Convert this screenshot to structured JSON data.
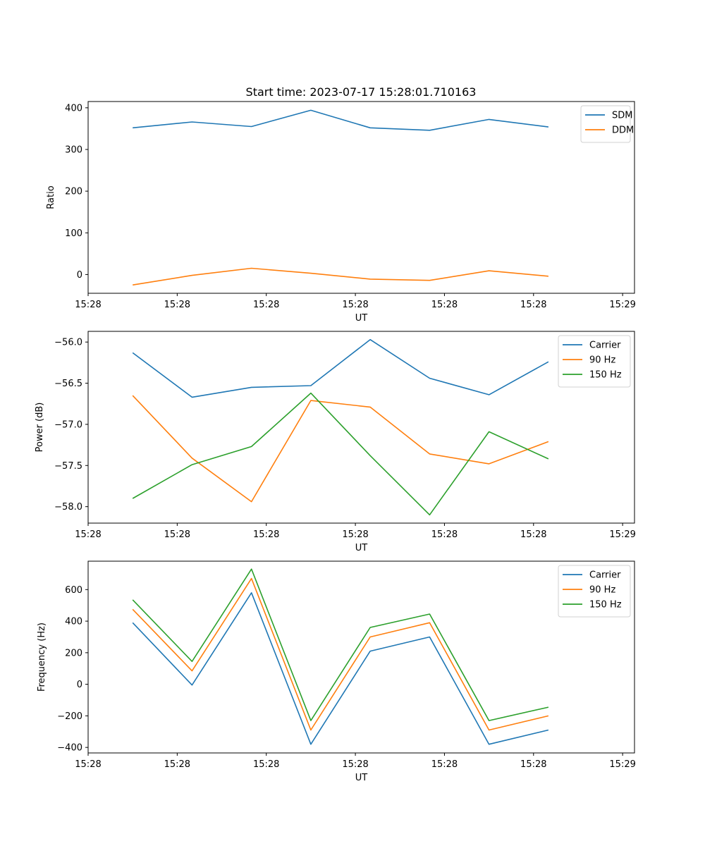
{
  "title": "Start time: 2023-07-17 15:28:01.710163",
  "colors": {
    "blue": "#1f77b4",
    "orange": "#ff7f0e",
    "green": "#2ca02c"
  },
  "chart_data": [
    {
      "type": "line",
      "xlabel": "UT",
      "ylabel": "Ratio",
      "x": [
        0,
        1,
        2,
        3,
        4,
        5,
        6,
        7
      ],
      "xlim": [
        -0.75,
        8.45
      ],
      "xticks": [
        -0.75,
        0.75,
        2.25,
        3.75,
        5.25,
        6.75,
        8.25
      ],
      "xtick_labels": [
        "15:28",
        "15:28",
        "15:28",
        "15:28",
        "15:28",
        "15:28",
        "15:29"
      ],
      "ylim": [
        -45,
        415
      ],
      "yticks": [
        0,
        100,
        200,
        300,
        400
      ],
      "ytick_labels": [
        "0",
        "100",
        "200",
        "300",
        "400"
      ],
      "legend": "top-right",
      "series": [
        {
          "name": "SDM",
          "color": "#1f77b4",
          "values": [
            352,
            366,
            355,
            394,
            352,
            346,
            372,
            354
          ]
        },
        {
          "name": "DDM",
          "color": "#ff7f0e",
          "values": [
            -25,
            -2,
            15,
            3,
            -11,
            -14,
            9,
            -4
          ]
        }
      ]
    },
    {
      "type": "line",
      "xlabel": "UT",
      "ylabel": "Power (dB)",
      "x": [
        0,
        1,
        2,
        3,
        4,
        5,
        6,
        7
      ],
      "xlim": [
        -0.75,
        8.45
      ],
      "xticks": [
        -0.75,
        0.75,
        2.25,
        3.75,
        5.25,
        6.75,
        8.25
      ],
      "xtick_labels": [
        "15:28",
        "15:28",
        "15:28",
        "15:28",
        "15:28",
        "15:28",
        "15:29"
      ],
      "ylim": [
        -58.2,
        -55.87
      ],
      "yticks": [
        -56.0,
        -56.5,
        -57.0,
        -57.5,
        -58.0
      ],
      "ytick_labels": [
        "−56.0",
        "−56.5",
        "−57.0",
        "−57.5",
        "−58.0"
      ],
      "legend": "top-right",
      "series": [
        {
          "name": "Carrier",
          "color": "#1f77b4",
          "values": [
            -56.13,
            -56.67,
            -56.55,
            -56.53,
            -55.97,
            -56.44,
            -56.64,
            -56.24
          ]
        },
        {
          "name": "90 Hz",
          "color": "#ff7f0e",
          "values": [
            -56.65,
            -57.41,
            -57.94,
            -56.71,
            -56.79,
            -57.36,
            -57.48,
            -57.21
          ]
        },
        {
          "name": "150 Hz",
          "color": "#2ca02c",
          "values": [
            -57.9,
            -57.49,
            -57.27,
            -56.62,
            -57.38,
            -58.1,
            -57.09,
            -57.42
          ]
        }
      ]
    },
    {
      "type": "line",
      "xlabel": "UT",
      "ylabel": "Frequency (Hz)",
      "x": [
        0,
        1,
        2,
        3,
        4,
        5,
        6,
        7
      ],
      "xlim": [
        -0.75,
        8.45
      ],
      "xticks": [
        -0.75,
        0.75,
        2.25,
        3.75,
        5.25,
        6.75,
        8.25
      ],
      "xtick_labels": [
        "15:28",
        "15:28",
        "15:28",
        "15:28",
        "15:28",
        "15:28",
        "15:29"
      ],
      "ylim": [
        -435,
        780
      ],
      "yticks": [
        600,
        400,
        200,
        0,
        -200,
        -400
      ],
      "ytick_labels": [
        "600",
        "400",
        "200",
        "0",
        "−200",
        "−400"
      ],
      "legend": "top-right",
      "series": [
        {
          "name": "Carrier",
          "color": "#1f77b4",
          "values": [
            390,
            -5,
            580,
            -380,
            210,
            300,
            -380,
            -290
          ]
        },
        {
          "name": "90 Hz",
          "color": "#ff7f0e",
          "values": [
            475,
            85,
            670,
            -290,
            300,
            390,
            -290,
            -200
          ]
        },
        {
          "name": "150 Hz",
          "color": "#2ca02c",
          "values": [
            535,
            145,
            730,
            -230,
            360,
            445,
            -230,
            -145
          ]
        }
      ]
    }
  ]
}
